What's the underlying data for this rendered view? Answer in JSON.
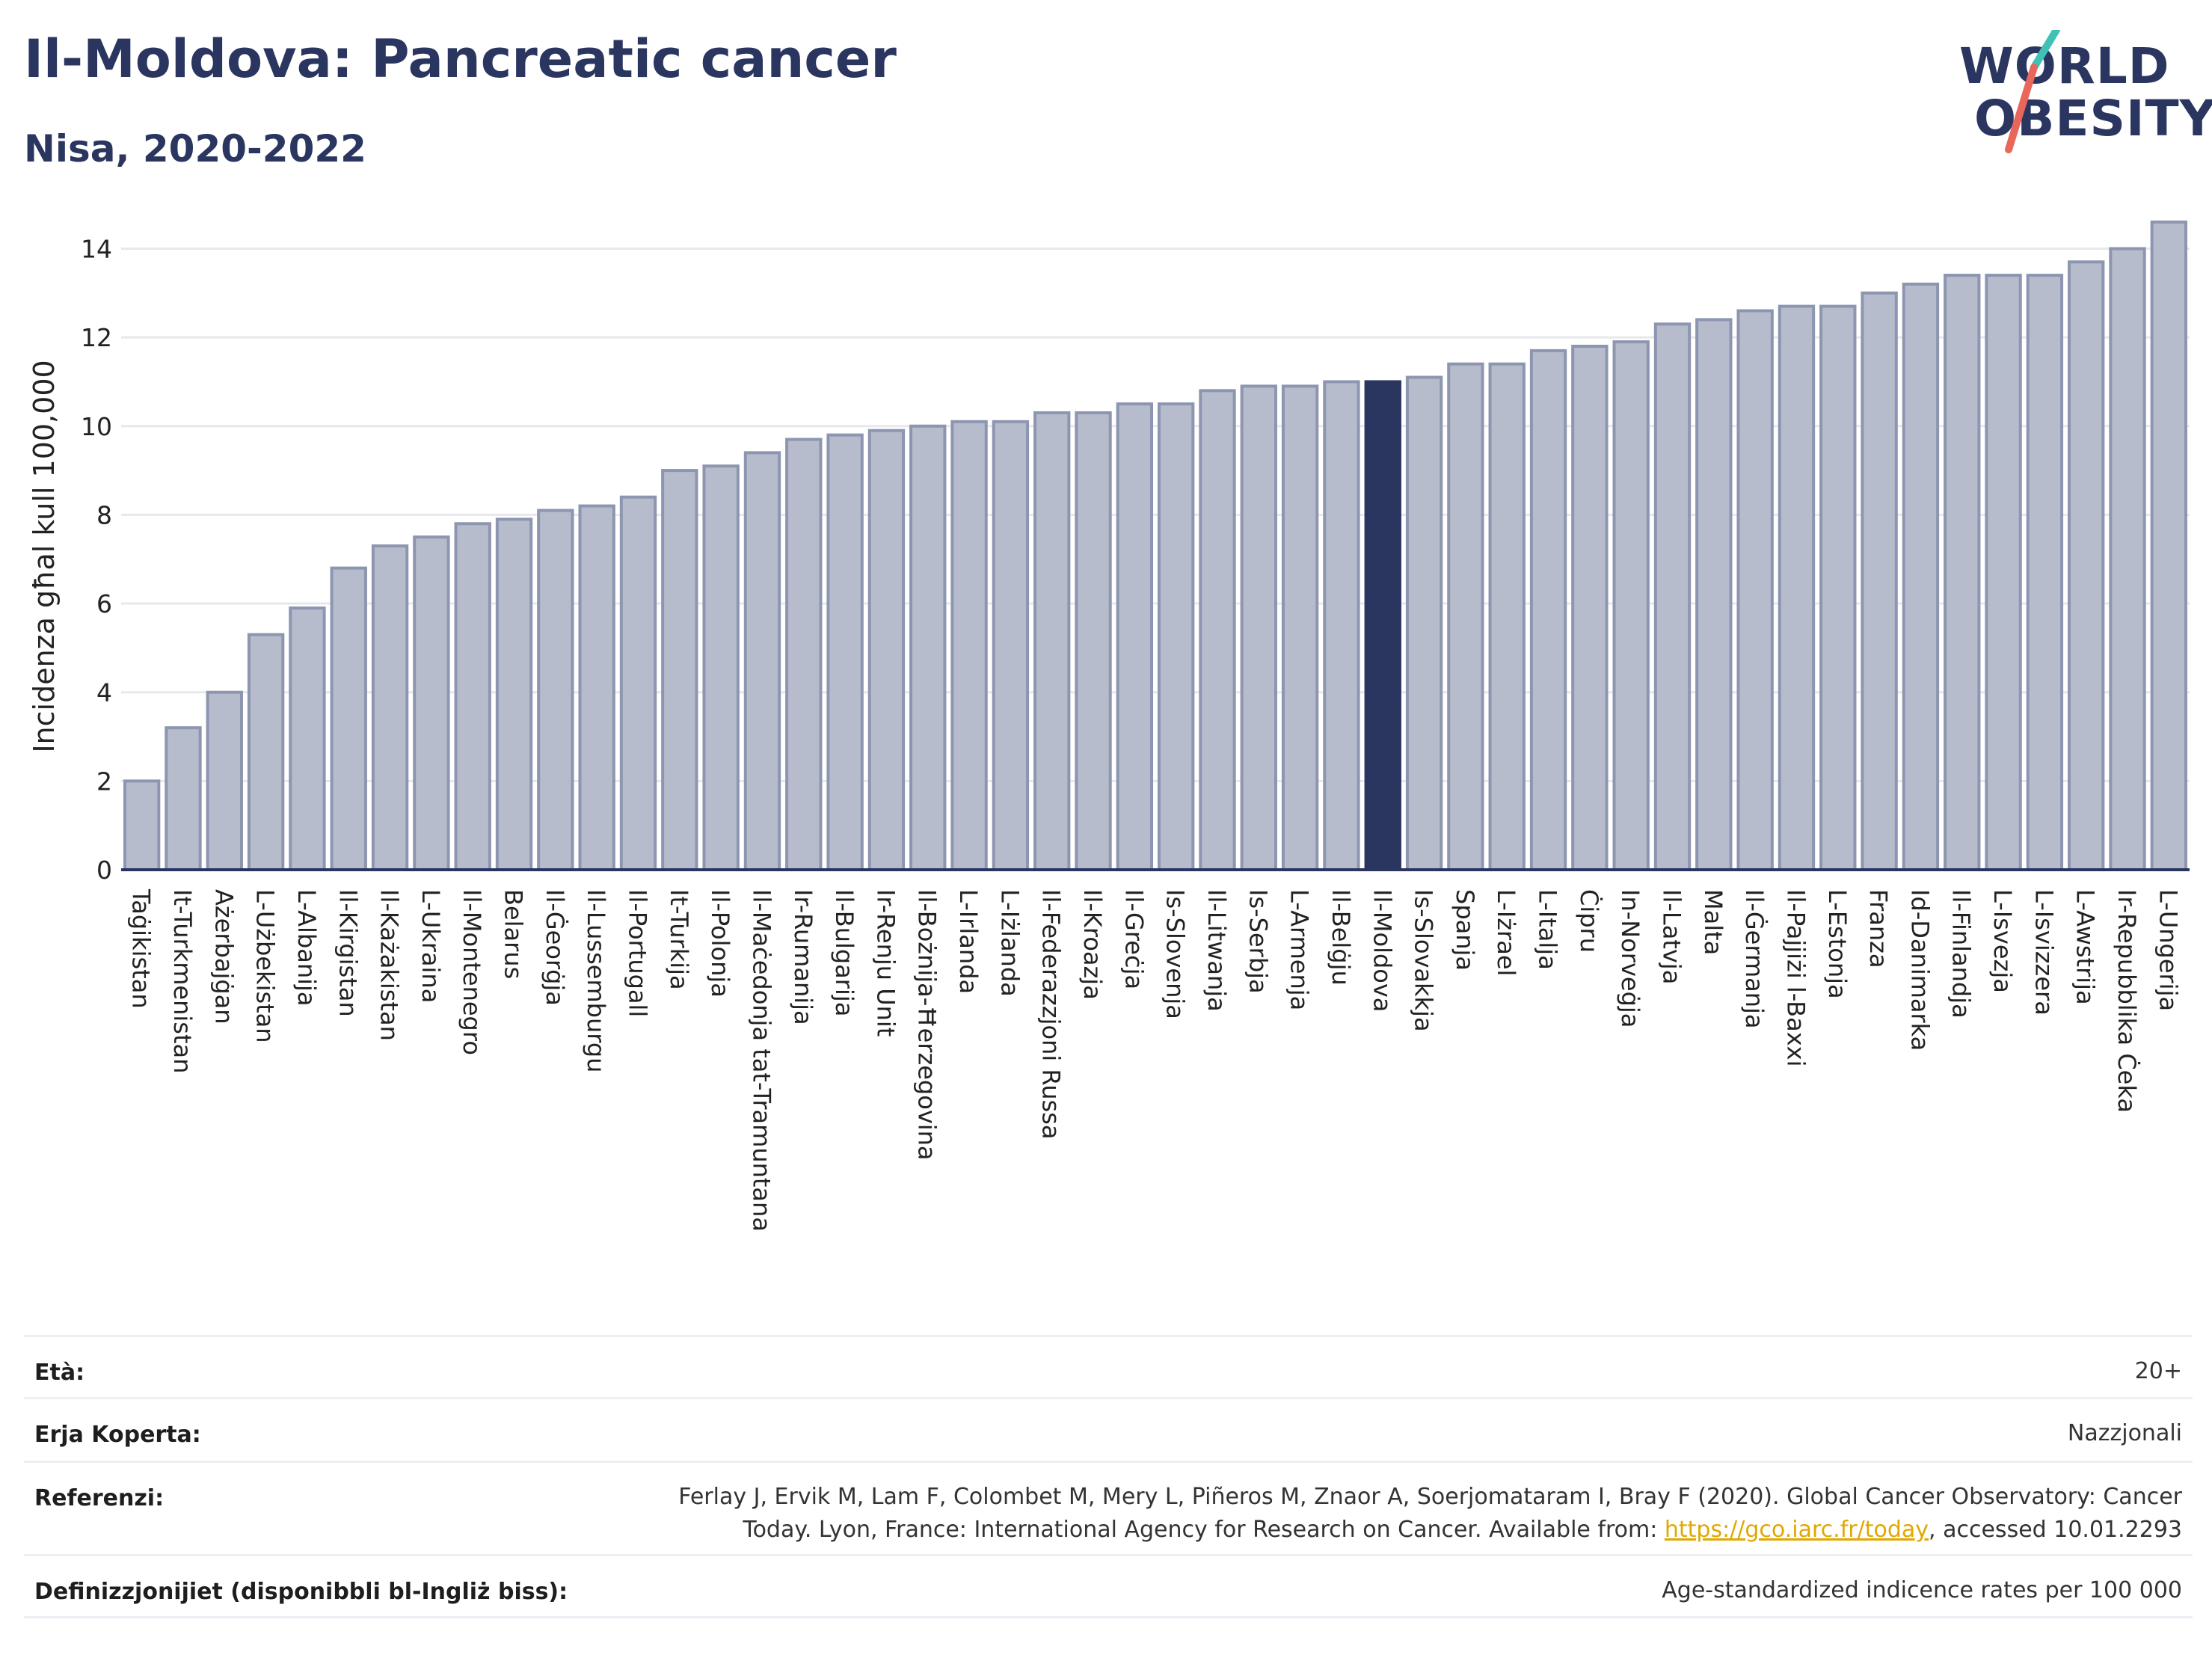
{
  "header": {
    "title": "Il-Moldova: Pancreatic cancer",
    "subtitle": "Nisa, 2020-2022"
  },
  "logo": {
    "line1": "WORLD",
    "line2": "OBESITY",
    "slash_color_top": "#3fc1b5",
    "slash_color_bottom": "#e8675a"
  },
  "colors": {
    "bar": "#b6bccb",
    "bar_border": "#8d96b0",
    "highlight": "#2a3560",
    "axis": "#2a3560",
    "grid": "#e6e8ee"
  },
  "chart_data": {
    "type": "bar",
    "ylabel": "Incidenza għal kull 100,000",
    "ylim": [
      0,
      14.8
    ],
    "yticks": [
      0,
      2,
      4,
      6,
      8,
      10,
      12,
      14
    ],
    "highlight": "Il-Moldova",
    "grid": true,
    "categories": [
      "Taġikistan",
      "It-Turkmenistan",
      "Ażerbajġan",
      "L-Użbekistan",
      "L-Albanija",
      "Il-Kirgistan",
      "Il-Każakistan",
      "L-Ukraina",
      "Il-Montenegro",
      "Belarus",
      "Il-Ġeorġja",
      "Il-Lussemburgu",
      "Il-Portugall",
      "It-Turkija",
      "Il-Polonja",
      "Il-Maċedonja tat-Tramuntana",
      "Ir-Rumanija",
      "Il-Bulgarija",
      "Ir-Renju Unit",
      "Il-Bożnija-Ħerzegovina",
      "L-Irlanda",
      "L-Iżlanda",
      "Il-Federazzjoni Russa",
      "Il-Kroazja",
      "Il-Greċja",
      "Is-Slovenja",
      "Il-Litwanja",
      "Is-Serbja",
      "L-Armenja",
      "Il-Belġju",
      "Il-Moldova",
      "Is-Slovakkja",
      "Spanja",
      "L-Iżrael",
      "L-Italja",
      "Ċipru",
      "In-Norveġja",
      "Il-Latvja",
      "Malta",
      "Il-Ġermanja",
      "Il-Pajjiżi l-Baxxi",
      "L-Estonja",
      "Franza",
      "Id-Danimarka",
      "Il-Finlandja",
      "L-Isvezja",
      "L-Isvizzera",
      "L-Awstrija",
      "Ir-Repubblika Ċeka",
      "L-Ungerija"
    ],
    "values": [
      2.0,
      3.2,
      4.0,
      5.3,
      5.9,
      6.8,
      7.3,
      7.5,
      7.8,
      7.9,
      8.1,
      8.2,
      8.4,
      9.0,
      9.1,
      9.4,
      9.7,
      9.8,
      9.9,
      10.0,
      10.1,
      10.1,
      10.3,
      10.3,
      10.5,
      10.5,
      10.8,
      10.9,
      10.9,
      11.0,
      11.0,
      11.1,
      11.4,
      11.4,
      11.7,
      11.8,
      11.9,
      12.3,
      12.4,
      12.6,
      12.7,
      12.7,
      13.0,
      13.2,
      13.4,
      13.4,
      13.4,
      13.7,
      14.0,
      14.6
    ]
  },
  "info": {
    "rows": [
      {
        "label": "Età:",
        "value": "20+"
      },
      {
        "label": "Erja Koperta:",
        "value": "Nazzjonali"
      },
      {
        "label": "Referenzi:",
        "value_pre": "Ferlay J, Ervik M, Lam F, Colombet M, Mery L, Piñeros M, Znaor A, Soerjomataram I, Bray F (2020). Global Cancer Observatory: Cancer",
        "value_line2_pre": "Today. Lyon, France: International Agency for Research on Cancer. Available from: ",
        "link": "https://gco.iarc.fr/today",
        "value_post": ", accessed 10.01.2293"
      },
      {
        "label": "Definizzjonijiet (disponibbli bl-Ingliż biss):",
        "value": "Age-standardized indicence rates per 100 000"
      }
    ]
  }
}
